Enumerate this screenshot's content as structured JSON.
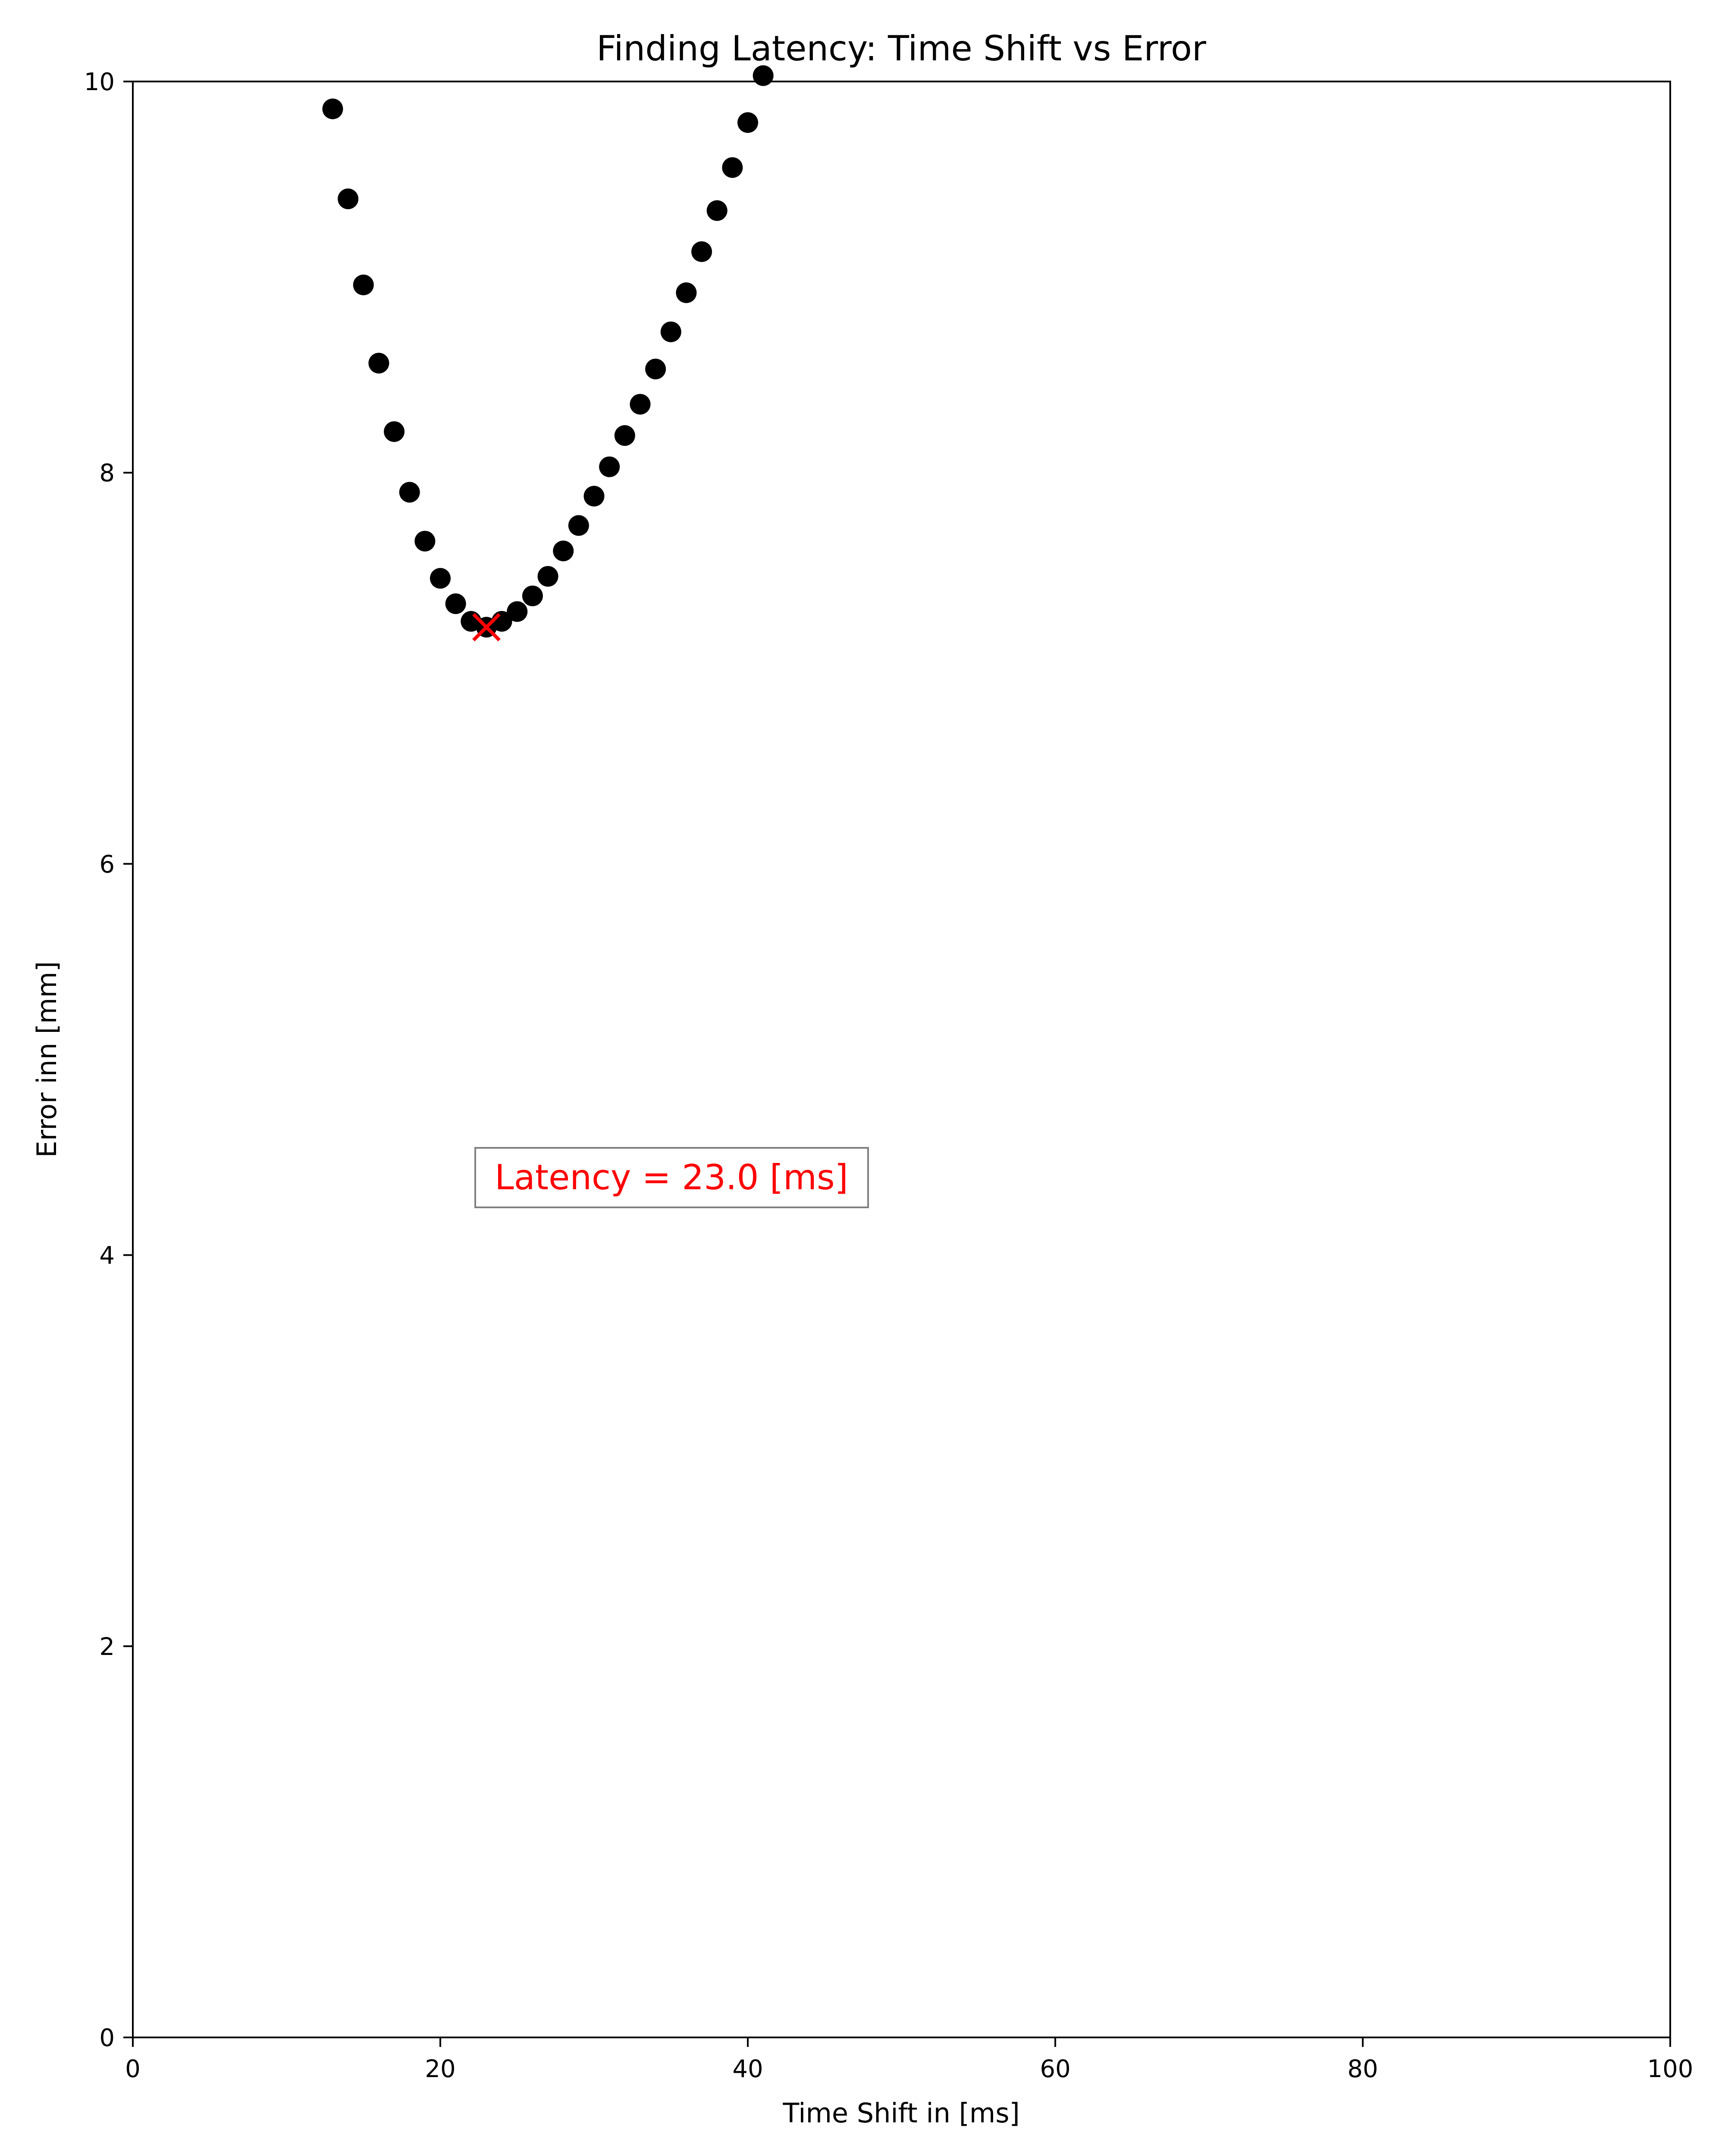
{
  "chart_data": {
    "type": "scatter",
    "title": "Finding Latency: Time Shift vs Error",
    "xlabel": "Time Shift in [ms]",
    "ylabel": "Error inn [mm]",
    "xlim": [
      0,
      100
    ],
    "ylim": [
      0,
      10
    ],
    "xticks": [
      0,
      20,
      40,
      60,
      80,
      100
    ],
    "yticks": [
      0,
      2,
      4,
      6,
      8,
      10
    ],
    "grid": false,
    "series": [
      {
        "marker": "circle",
        "color": "#000000",
        "points": [
          {
            "x": 13,
            "y": 9.86
          },
          {
            "x": 14,
            "y": 9.4
          },
          {
            "x": 15,
            "y": 8.96
          },
          {
            "x": 16,
            "y": 8.56
          },
          {
            "x": 17,
            "y": 8.21
          },
          {
            "x": 18,
            "y": 7.9
          },
          {
            "x": 19,
            "y": 7.65
          },
          {
            "x": 20,
            "y": 7.46
          },
          {
            "x": 21,
            "y": 7.33
          },
          {
            "x": 22,
            "y": 7.24
          },
          {
            "x": 23,
            "y": 7.21
          },
          {
            "x": 24,
            "y": 7.24
          },
          {
            "x": 25,
            "y": 7.29
          },
          {
            "x": 26,
            "y": 7.37
          },
          {
            "x": 27,
            "y": 7.47
          },
          {
            "x": 28,
            "y": 7.6
          },
          {
            "x": 29,
            "y": 7.73
          },
          {
            "x": 30,
            "y": 7.88
          },
          {
            "x": 31,
            "y": 8.03
          },
          {
            "x": 32,
            "y": 8.19
          },
          {
            "x": 33,
            "y": 8.35
          },
          {
            "x": 34,
            "y": 8.53
          },
          {
            "x": 35,
            "y": 8.72
          },
          {
            "x": 36,
            "y": 8.92
          },
          {
            "x": 37,
            "y": 9.13
          },
          {
            "x": 38,
            "y": 9.34
          },
          {
            "x": 39,
            "y": 9.56
          },
          {
            "x": 40,
            "y": 9.79
          },
          {
            "x": 41,
            "y": 10.03
          }
        ]
      }
    ],
    "minimum_marker": {
      "x": 23,
      "y": 7.21,
      "marker": "x",
      "color": "#ff0000"
    },
    "annotation": {
      "text": "Latency = 23.0 [ms]",
      "color": "#ff0000",
      "x": 35,
      "y": 4.36
    }
  }
}
